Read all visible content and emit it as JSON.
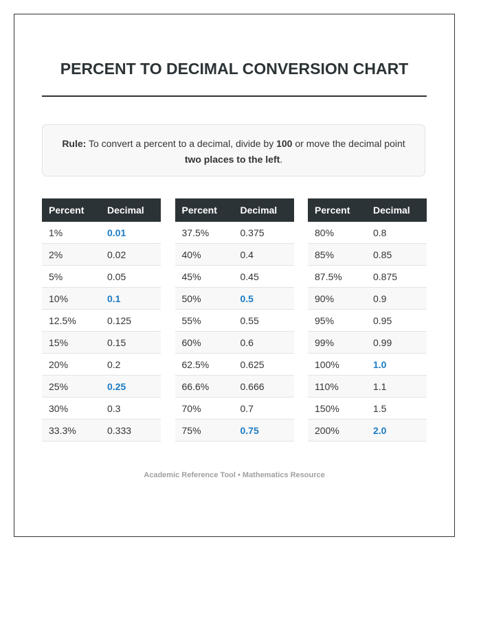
{
  "title": "PERCENT TO DECIMAL CONVERSION CHART",
  "rule": {
    "label": "Rule:",
    "parts": [
      "To convert a percent to a decimal, divide by",
      "100",
      "or move the decimal point",
      "two places to the left",
      "."
    ]
  },
  "tables": [
    {
      "headers": [
        "Percent",
        "Decimal"
      ],
      "rows": [
        [
          "1%",
          "0.01"
        ],
        [
          "2%",
          "0.02"
        ],
        [
          "5%",
          "0.05"
        ],
        [
          "10%",
          "0.1"
        ],
        [
          "12.5%",
          "0.125"
        ],
        [
          "15%",
          "0.15"
        ],
        [
          "20%",
          "0.2"
        ],
        [
          "25%",
          "0.25"
        ],
        [
          "30%",
          "0.3"
        ],
        [
          "33.3%",
          "0.333"
        ]
      ]
    },
    {
      "headers": [
        "Percent",
        "Decimal"
      ],
      "rows": [
        [
          "37.5%",
          "0.375"
        ],
        [
          "40%",
          "0.4"
        ],
        [
          "45%",
          "0.45"
        ],
        [
          "50%",
          "0.5"
        ],
        [
          "55%",
          "0.55"
        ],
        [
          "60%",
          "0.6"
        ],
        [
          "62.5%",
          "0.625"
        ],
        [
          "66.6%",
          "0.666"
        ],
        [
          "70%",
          "0.7"
        ],
        [
          "75%",
          "0.75"
        ]
      ]
    },
    {
      "headers": [
        "Percent",
        "Decimal"
      ],
      "rows": [
        [
          "80%",
          "0.8"
        ],
        [
          "85%",
          "0.85"
        ],
        [
          "87.5%",
          "0.875"
        ],
        [
          "90%",
          "0.9"
        ],
        [
          "95%",
          "0.95"
        ],
        [
          "99%",
          "0.99"
        ],
        [
          "100%",
          "1.0"
        ],
        [
          "110%",
          "1.1"
        ],
        [
          "150%",
          "1.5"
        ],
        [
          "200%",
          "2.0"
        ]
      ]
    }
  ],
  "footer": "Academic Reference Tool • Mathematics Resource"
}
